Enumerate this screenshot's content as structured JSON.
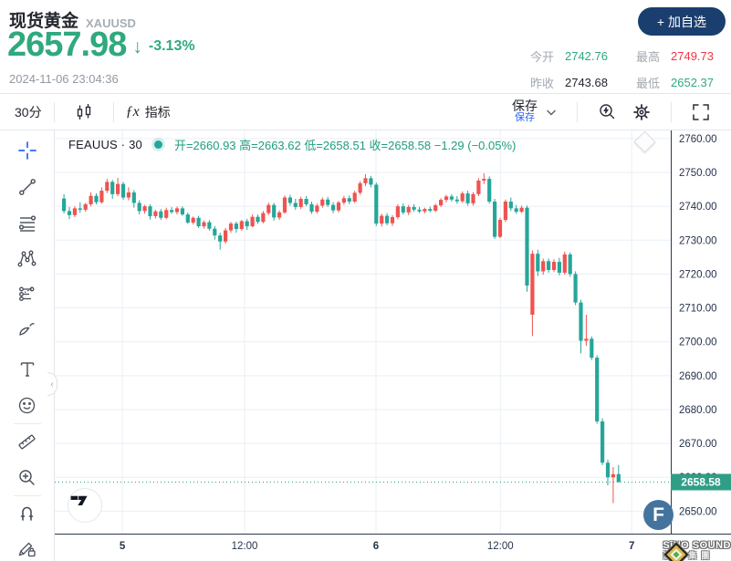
{
  "header": {
    "title": "现货黄金",
    "symbol": "XAUUSD",
    "price": "2657.98",
    "direction_arrow": "↓",
    "change_pct": "-3.13%",
    "timestamp": "2024-11-06 23:04:36",
    "add_watchlist_label": "+ 加自选",
    "stats": [
      {
        "label": "今开",
        "value": "2742.76"
      },
      {
        "label": "最高",
        "value": "2749.73"
      },
      {
        "label": "昨收",
        "value": "2743.68"
      },
      {
        "label": "最低",
        "value": "2652.37"
      }
    ]
  },
  "toolbar": {
    "interval_label": "30分",
    "fx_glyph": "ƒx",
    "indicators_label": "指标",
    "save_label": "保存",
    "save_sublabel": "保存",
    "icons": [
      "candles-icon",
      "chevron-down-icon",
      "search-flash-icon",
      "gear-icon",
      "fullscreen-icon"
    ]
  },
  "sidebar_tools": [
    "crosshair",
    "trend-line",
    "fib-retracement",
    "xabcd-pattern",
    "forecast",
    "brush",
    "text",
    "emoji",
    "ruler",
    "zoom-in",
    "magnet",
    "drawing-lock"
  ],
  "legend": {
    "series_title": "FEAUUS · 30",
    "ohlc_text": "开=2660.93 高=2663.62 低=2658.51 收=2658.58 −1.29 (−0.05%)"
  },
  "collapse_glyph": "‹",
  "watermark": {
    "logo_letter": "F",
    "brand": "SiNO SOUND",
    "brand_cn": "漢聲集團"
  },
  "chart_data": {
    "type": "candlestick",
    "symbol": "FEAUUS",
    "interval": "30m",
    "ohlc_legend": {
      "open": 2660.93,
      "high": 2663.62,
      "low": 2658.51,
      "close": 2658.58,
      "change": -1.29,
      "change_pct": "-0.05%"
    },
    "last_price": 2658.58,
    "day_high": 2749.73,
    "day_low": 2652.37,
    "ylim": [
      2643.4,
      2762.4
    ],
    "y_ticks": [
      2760,
      2750,
      2740,
      2730,
      2720,
      2710,
      2700,
      2690,
      2680,
      2670,
      2660,
      2650
    ],
    "x_ticks": [
      {
        "label": "5",
        "i": 11.2,
        "major": true
      },
      {
        "label": "12:00",
        "i": 33.9,
        "major": false
      },
      {
        "label": "6",
        "i": 58.3,
        "major": true
      },
      {
        "label": "12:00",
        "i": 81.4,
        "major": false
      },
      {
        "label": "7",
        "i": 105.8,
        "major": true
      }
    ],
    "rise_color": "#ef5350",
    "fall_color": "#26a69a",
    "grid_color": "#e9eff5",
    "axis_line_color": "#2c3a4f",
    "axis_text_color": "#26334d",
    "last_price_bg": "#2f9e87",
    "candles": [
      [
        2742.3,
        2743.6,
        2737.9,
        2738.6
      ],
      [
        2738.6,
        2739.8,
        2736.2,
        2737.4
      ],
      [
        2737.4,
        2740.0,
        2736.8,
        2739.4
      ],
      [
        2739.4,
        2741.2,
        2738.1,
        2739.0
      ],
      [
        2739.0,
        2741.0,
        2738.4,
        2740.6
      ],
      [
        2740.6,
        2744.1,
        2740.0,
        2743.1
      ],
      [
        2743.1,
        2743.8,
        2740.6,
        2741.2
      ],
      [
        2741.2,
        2745.6,
        2740.8,
        2744.6
      ],
      [
        2744.6,
        2748.1,
        2743.9,
        2747.2
      ],
      [
        2747.2,
        2747.8,
        2742.2,
        2743.6
      ],
      [
        2743.6,
        2748.4,
        2743.0,
        2746.6
      ],
      [
        2746.6,
        2747.2,
        2742.0,
        2742.6
      ],
      [
        2742.6,
        2745.6,
        2741.8,
        2744.1
      ],
      [
        2744.1,
        2744.8,
        2739.6,
        2741.0
      ],
      [
        2741.0,
        2741.8,
        2737.6,
        2738.6
      ],
      [
        2738.6,
        2740.4,
        2737.8,
        2740.0
      ],
      [
        2740.0,
        2740.6,
        2736.1,
        2737.1
      ],
      [
        2737.1,
        2739.0,
        2736.4,
        2738.5
      ],
      [
        2738.5,
        2739.2,
        2736.0,
        2736.6
      ],
      [
        2736.6,
        2739.6,
        2736.2,
        2738.9
      ],
      [
        2738.9,
        2739.8,
        2737.8,
        2738.3
      ],
      [
        2738.3,
        2739.9,
        2737.6,
        2739.4
      ],
      [
        2739.4,
        2740.0,
        2737.2,
        2737.6
      ],
      [
        2737.6,
        2738.2,
        2734.8,
        2735.2
      ],
      [
        2735.2,
        2737.0,
        2734.6,
        2736.6
      ],
      [
        2736.6,
        2737.2,
        2733.6,
        2734.1
      ],
      [
        2734.1,
        2735.8,
        2733.4,
        2735.3
      ],
      [
        2735.3,
        2735.9,
        2732.8,
        2733.4
      ],
      [
        2733.4,
        2734.2,
        2730.2,
        2731.4
      ],
      [
        2731.4,
        2732.2,
        2727.2,
        2729.6
      ],
      [
        2729.6,
        2733.6,
        2729.0,
        2732.9
      ],
      [
        2732.9,
        2735.4,
        2732.2,
        2734.9
      ],
      [
        2734.9,
        2735.5,
        2732.2,
        2733.3
      ],
      [
        2733.3,
        2736.0,
        2732.8,
        2735.6
      ],
      [
        2735.6,
        2736.3,
        2733.0,
        2734.1
      ],
      [
        2734.1,
        2737.6,
        2733.8,
        2736.9
      ],
      [
        2736.9,
        2737.6,
        2734.8,
        2735.4
      ],
      [
        2735.4,
        2738.6,
        2735.0,
        2738.0
      ],
      [
        2738.0,
        2741.1,
        2737.4,
        2740.4
      ],
      [
        2740.4,
        2741.0,
        2735.8,
        2736.7
      ],
      [
        2736.7,
        2738.8,
        2736.0,
        2738.2
      ],
      [
        2738.2,
        2743.2,
        2737.8,
        2742.6
      ],
      [
        2742.6,
        2743.4,
        2740.2,
        2741.0
      ],
      [
        2741.0,
        2742.2,
        2739.0,
        2739.8
      ],
      [
        2739.8,
        2742.8,
        2739.2,
        2742.2
      ],
      [
        2742.2,
        2743.0,
        2740.0,
        2740.6
      ],
      [
        2740.6,
        2741.4,
        2737.8,
        2738.4
      ],
      [
        2738.4,
        2740.8,
        2737.9,
        2740.2
      ],
      [
        2740.2,
        2742.6,
        2739.6,
        2742.0
      ],
      [
        2742.0,
        2742.8,
        2739.8,
        2740.4
      ],
      [
        2740.4,
        2741.2,
        2738.0,
        2738.8
      ],
      [
        2738.8,
        2741.6,
        2738.2,
        2741.1
      ],
      [
        2741.1,
        2743.1,
        2740.4,
        2742.4
      ],
      [
        2742.4,
        2743.2,
        2740.6,
        2741.4
      ],
      [
        2741.4,
        2744.6,
        2741.0,
        2744.0
      ],
      [
        2744.0,
        2747.4,
        2743.4,
        2746.8
      ],
      [
        2746.8,
        2749.5,
        2746.0,
        2748.3
      ],
      [
        2748.3,
        2749.0,
        2745.6,
        2746.4
      ],
      [
        2746.4,
        2747.0,
        2734.2,
        2734.9
      ],
      [
        2734.9,
        2737.8,
        2734.0,
        2737.2
      ],
      [
        2737.2,
        2738.0,
        2734.4,
        2735.0
      ],
      [
        2735.0,
        2737.4,
        2734.2,
        2736.8
      ],
      [
        2736.8,
        2740.6,
        2736.2,
        2740.0
      ],
      [
        2740.0,
        2740.8,
        2737.6,
        2738.2
      ],
      [
        2738.2,
        2740.4,
        2737.4,
        2739.8
      ],
      [
        2739.8,
        2740.6,
        2738.4,
        2739.0
      ],
      [
        2739.0,
        2739.8,
        2738.0,
        2738.5
      ],
      [
        2738.5,
        2739.6,
        2737.9,
        2739.2
      ],
      [
        2739.2,
        2739.9,
        2738.2,
        2738.7
      ],
      [
        2738.7,
        2740.8,
        2738.3,
        2740.3
      ],
      [
        2740.3,
        2742.4,
        2739.8,
        2741.9
      ],
      [
        2741.9,
        2743.4,
        2741.2,
        2742.9
      ],
      [
        2742.9,
        2743.6,
        2741.4,
        2742.0
      ],
      [
        2742.0,
        2743.0,
        2740.8,
        2741.5
      ],
      [
        2741.5,
        2744.4,
        2741.0,
        2743.8
      ],
      [
        2743.8,
        2744.6,
        2740.2,
        2740.9
      ],
      [
        2740.9,
        2744.2,
        2740.2,
        2743.6
      ],
      [
        2743.6,
        2748.3,
        2743.0,
        2747.6
      ],
      [
        2747.6,
        2749.73,
        2746.6,
        2748.1
      ],
      [
        2748.1,
        2748.8,
        2740.8,
        2741.4
      ],
      [
        2741.4,
        2742.2,
        2730.4,
        2731.0
      ],
      [
        2731.0,
        2736.6,
        2730.6,
        2736.0
      ],
      [
        2736.0,
        2742.0,
        2735.4,
        2741.4
      ],
      [
        2741.4,
        2742.6,
        2738.6,
        2739.4
      ],
      [
        2739.4,
        2740.4,
        2737.8,
        2738.4
      ],
      [
        2738.4,
        2740.2,
        2738.0,
        2739.6
      ],
      [
        2739.6,
        2740.2,
        2714.8,
        2716.6
      ],
      [
        2708.0,
        2727.0,
        2701.7,
        2726.0
      ],
      [
        2726.0,
        2727.2,
        2719.4,
        2720.8
      ],
      [
        2720.8,
        2724.6,
        2719.8,
        2723.8
      ],
      [
        2723.8,
        2724.6,
        2720.4,
        2721.2
      ],
      [
        2721.2,
        2724.4,
        2720.6,
        2723.6
      ],
      [
        2723.6,
        2724.8,
        2719.6,
        2720.4
      ],
      [
        2720.4,
        2726.6,
        2719.8,
        2725.8
      ],
      [
        2725.8,
        2726.4,
        2719.2,
        2720.0
      ],
      [
        2720.0,
        2720.8,
        2710.8,
        2711.6
      ],
      [
        2711.6,
        2712.4,
        2696.6,
        2700.3
      ],
      [
        2700.3,
        2708.0,
        2698.8,
        2700.9
      ],
      [
        2700.9,
        2701.6,
        2694.6,
        2695.3
      ],
      [
        2695.3,
        2696.0,
        2675.8,
        2676.5
      ],
      [
        2676.5,
        2677.4,
        2663.6,
        2664.3
      ],
      [
        2664.3,
        2665.2,
        2657.6,
        2660.0
      ],
      [
        2660.0,
        2663.0,
        2652.37,
        2660.9
      ],
      [
        2660.93,
        2663.62,
        2658.51,
        2658.58
      ]
    ]
  }
}
